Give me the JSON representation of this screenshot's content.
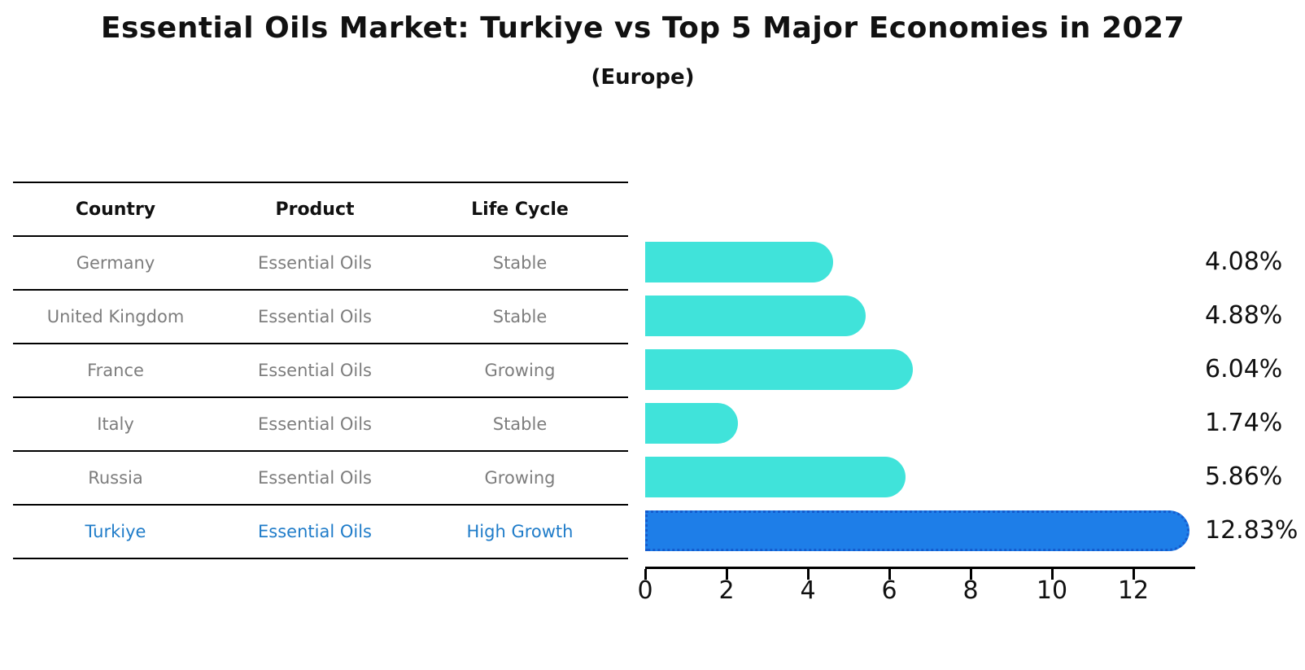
{
  "title": "Essential Oils Market: Turkiye vs Top 5 Major Economies in 2027",
  "subtitle": "(Europe)",
  "table": {
    "headers": [
      "Country",
      "Product",
      "Life Cycle"
    ],
    "rows": [
      {
        "country": "Germany",
        "product": "Essential Oils",
        "life_cycle": "Stable"
      },
      {
        "country": "United Kingdom",
        "product": "Essential Oils",
        "life_cycle": "Stable"
      },
      {
        "country": "France",
        "product": "Essential Oils",
        "life_cycle": "Growing"
      },
      {
        "country": "Italy",
        "product": "Essential Oils",
        "life_cycle": "Stable"
      },
      {
        "country": "Russia",
        "product": "Essential Oils",
        "life_cycle": "Growing"
      },
      {
        "country": "Turkiye",
        "product": "Essential Oils",
        "life_cycle": "High Growth"
      }
    ]
  },
  "chart_data": {
    "type": "bar",
    "orientation": "horizontal",
    "title": "Essential Oils Market: Turkiye vs Top 5 Major Economies in 2027",
    "subtitle": "(Europe)",
    "categories": [
      "Germany",
      "United Kingdom",
      "France",
      "Italy",
      "Russia",
      "Turkiye"
    ],
    "values": [
      4.08,
      4.88,
      6.04,
      1.74,
      5.86,
      12.83
    ],
    "value_labels": [
      "4.08%",
      "4.88%",
      "6.04%",
      "1.74%",
      "5.86%",
      "12.83%"
    ],
    "unit": "percent",
    "x_ticks": [
      0,
      2,
      4,
      6,
      8,
      10,
      12
    ],
    "xlim": [
      0,
      13.5
    ],
    "grid": false,
    "legend": false,
    "highlight_category": "Turkiye",
    "bar_color": "#40E3DA",
    "highlight_color": "#1E7EE8",
    "highlight_border_color": "#155CCE"
  },
  "colors": {
    "background": "#ffffff",
    "table_text": "#7d7d7d",
    "header_text": "#111111",
    "highlight_row_text": "#1F7CC9",
    "axis": "#000000"
  }
}
